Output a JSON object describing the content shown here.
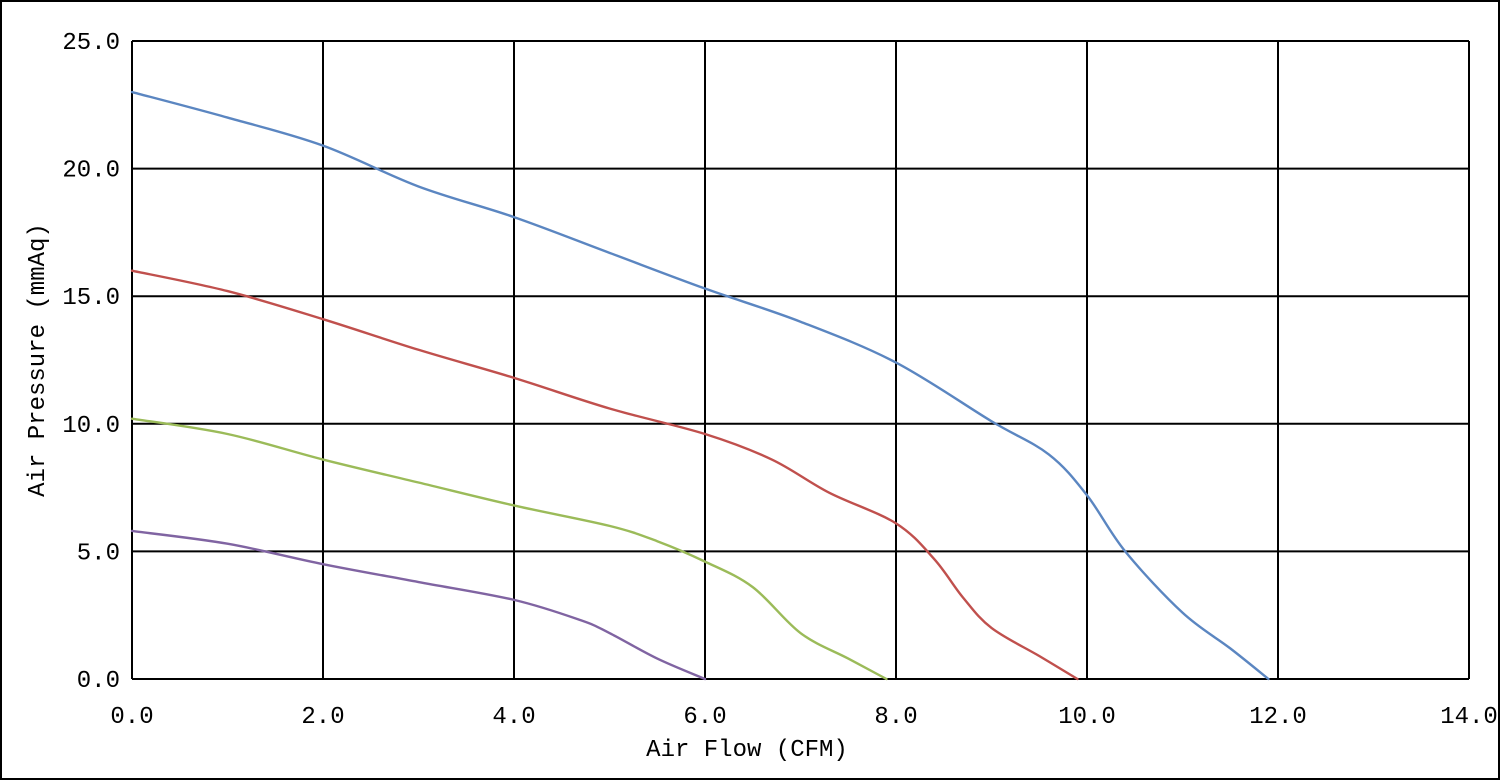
{
  "chart_data": {
    "type": "line",
    "xlabel": "Air Flow (CFM)",
    "ylabel": "Air Pressure (mmAq)",
    "xlim": [
      0,
      14
    ],
    "ylim": [
      0,
      25
    ],
    "grid": true,
    "x_ticks": [
      "0.0",
      "2.0",
      "4.0",
      "6.0",
      "8.0",
      "10.0",
      "12.0",
      "14.0"
    ],
    "y_ticks": [
      "0.0",
      "5.0",
      "10.0",
      "15.0",
      "20.0",
      "25.0"
    ],
    "series": [
      {
        "color": "#5b86c1",
        "points": [
          [
            0.0,
            23.0
          ],
          [
            1.0,
            22.0
          ],
          [
            2.0,
            20.9
          ],
          [
            3.0,
            19.3
          ],
          [
            4.0,
            18.1
          ],
          [
            5.0,
            16.7
          ],
          [
            6.0,
            15.3
          ],
          [
            7.0,
            14.0
          ],
          [
            8.0,
            12.4
          ],
          [
            9.0,
            10.1
          ],
          [
            9.6,
            8.8
          ],
          [
            10.0,
            7.2
          ],
          [
            10.4,
            5.0
          ],
          [
            11.0,
            2.6
          ],
          [
            11.5,
            1.2
          ],
          [
            11.9,
            0.0
          ]
        ]
      },
      {
        "color": "#c0504d",
        "points": [
          [
            0.0,
            16.0
          ],
          [
            1.0,
            15.2
          ],
          [
            2.0,
            14.1
          ],
          [
            3.0,
            12.9
          ],
          [
            4.0,
            11.8
          ],
          [
            5.0,
            10.6
          ],
          [
            6.0,
            9.6
          ],
          [
            6.7,
            8.6
          ],
          [
            7.3,
            7.3
          ],
          [
            8.0,
            6.1
          ],
          [
            8.4,
            4.7
          ],
          [
            8.7,
            3.2
          ],
          [
            9.0,
            2.0
          ],
          [
            9.5,
            0.9
          ],
          [
            9.9,
            0.0
          ]
        ]
      },
      {
        "color": "#9bbb59",
        "points": [
          [
            0.0,
            10.2
          ],
          [
            1.0,
            9.6
          ],
          [
            2.0,
            8.6
          ],
          [
            3.0,
            7.7
          ],
          [
            4.0,
            6.8
          ],
          [
            5.0,
            6.0
          ],
          [
            5.5,
            5.4
          ],
          [
            6.0,
            4.6
          ],
          [
            6.5,
            3.6
          ],
          [
            7.0,
            1.8
          ],
          [
            7.5,
            0.8
          ],
          [
            7.9,
            0.0
          ]
        ]
      },
      {
        "color": "#8064a2",
        "points": [
          [
            0.0,
            5.8
          ],
          [
            1.0,
            5.3
          ],
          [
            2.0,
            4.5
          ],
          [
            3.0,
            3.8
          ],
          [
            4.0,
            3.1
          ],
          [
            4.7,
            2.3
          ],
          [
            5.0,
            1.8
          ],
          [
            5.5,
            0.8
          ],
          [
            6.0,
            0.0
          ]
        ]
      }
    ]
  }
}
